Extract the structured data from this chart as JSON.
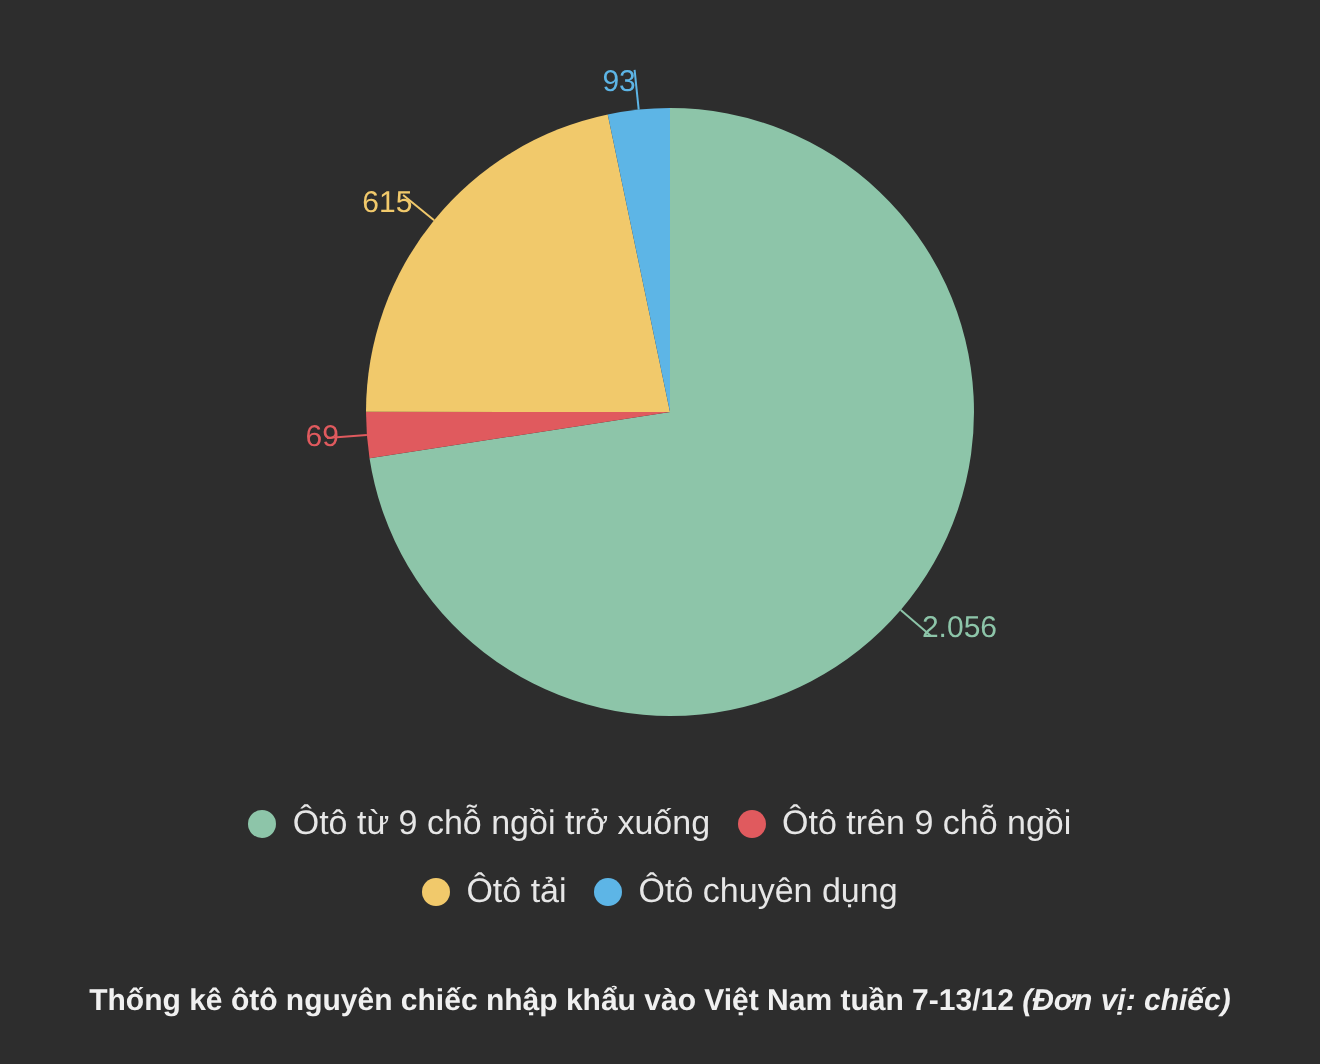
{
  "chart_data": {
    "type": "pie",
    "title": "Thống kê ôtô nguyên chiếc nhập khẩu vào Việt Nam tuần 7-13/12",
    "subtitle": "(Đơn vị: chiếc)",
    "categories": [
      "Ôtô từ 9 chỗ ngồi trở xuống",
      "Ôtô trên 9 chỗ ngồi",
      "Ôtô tải",
      "Ôtô chuyên dụng"
    ],
    "values": [
      2056,
      69,
      615,
      93
    ],
    "value_labels": [
      "2.056",
      "69",
      "615",
      "93"
    ],
    "colors": [
      "#8dc5a9",
      "#e05a5e",
      "#f1c96b",
      "#5db5e6"
    ],
    "legend": "bottom"
  }
}
